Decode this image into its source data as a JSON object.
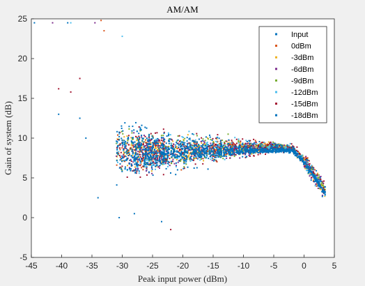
{
  "chart_data": {
    "type": "scatter",
    "title": "AM/AM",
    "xlabel": "Peak input power (dBm)",
    "ylabel": "Gain of system (dB)",
    "xlim": [
      -45,
      5
    ],
    "ylim": [
      -5,
      25
    ],
    "xticks": [
      "-45",
      "-40",
      "-35",
      "-30",
      "-25",
      "-20",
      "-15",
      "-10",
      "-5",
      "0",
      "5"
    ],
    "yticks": [
      "-5",
      "0",
      "5",
      "10",
      "15",
      "20",
      "25"
    ],
    "grid": false,
    "legend_position": "top-right",
    "series": [
      {
        "name": "Input",
        "color": "#0072bd",
        "shift": 0,
        "spread": 1.0,
        "trend": [
          [
            -30,
            8.3
          ],
          [
            -20,
            8.3
          ],
          [
            -10,
            8.4
          ],
          [
            -2,
            8.5
          ],
          [
            0,
            7.0
          ],
          [
            3.5,
            3.0
          ]
        ]
      },
      {
        "name": "0dBm",
        "color": "#d95319",
        "shift": 0,
        "spread": 0.62,
        "trend": [
          [
            -26,
            8.2
          ],
          [
            -15,
            8.6
          ],
          [
            -5,
            8.9
          ],
          [
            -2,
            8.7
          ],
          [
            0,
            7.2
          ],
          [
            3.5,
            3.2
          ]
        ]
      },
      {
        "name": "-3dBm",
        "color": "#edb120",
        "shift": -3,
        "spread": 0.68,
        "trend": [
          [
            -26,
            8.2
          ],
          [
            -15,
            8.6
          ],
          [
            -5,
            8.9
          ],
          [
            -2,
            8.7
          ],
          [
            0,
            7.2
          ],
          [
            3.5,
            3.2
          ]
        ]
      },
      {
        "name": "-6dBm",
        "color": "#7e2f8e",
        "shift": -6,
        "spread": 0.72,
        "trend": [
          [
            -26,
            8.2
          ],
          [
            -15,
            8.6
          ],
          [
            -5,
            8.9
          ],
          [
            -2,
            8.7
          ],
          [
            0,
            7.2
          ],
          [
            3.5,
            3.2
          ]
        ]
      },
      {
        "name": "-9dBm",
        "color": "#77ac30",
        "shift": -9,
        "spread": 0.76,
        "trend": [
          [
            -26,
            8.2
          ],
          [
            -15,
            8.6
          ],
          [
            -5,
            8.9
          ],
          [
            -2,
            8.7
          ],
          [
            0,
            7.2
          ],
          [
            3.5,
            3.2
          ]
        ]
      },
      {
        "name": "-12dBm",
        "color": "#4dbeee",
        "shift": -12,
        "spread": 0.82,
        "trend": [
          [
            -26,
            8.2
          ],
          [
            -15,
            8.6
          ],
          [
            -5,
            8.9
          ],
          [
            -2,
            8.7
          ],
          [
            0,
            7.2
          ],
          [
            3.5,
            3.2
          ]
        ]
      },
      {
        "name": "-15dBm",
        "color": "#a2142f",
        "shift": -15,
        "spread": 0.88,
        "trend": [
          [
            -26,
            8.2
          ],
          [
            -15,
            8.6
          ],
          [
            -5,
            8.9
          ],
          [
            -2,
            8.7
          ],
          [
            0,
            7.2
          ],
          [
            3.5,
            3.2
          ]
        ]
      },
      {
        "name": "-18dBm",
        "color": "#0072bd",
        "shift": -18,
        "spread": 0.95,
        "trend": [
          [
            -26,
            8.2
          ],
          [
            -15,
            8.6
          ],
          [
            -5,
            8.9
          ],
          [
            -2,
            8.7
          ],
          [
            0,
            7.2
          ],
          [
            3.5,
            3.2
          ]
        ]
      }
    ],
    "outliers": [
      {
        "series": "Input",
        "points": [
          [
            -44.5,
            24.5
          ],
          [
            -39,
            24.5
          ],
          [
            -37,
            12.5
          ],
          [
            -36,
            10.0
          ],
          [
            -34,
            2.5
          ],
          [
            -30.5,
            0.0
          ]
        ]
      },
      {
        "series": "0dBm",
        "points": [
          [
            -33.5,
            24.8
          ],
          [
            -33.0,
            23.5
          ]
        ]
      },
      {
        "series": "-6dBm",
        "points": [
          [
            -34.5,
            24.5
          ],
          [
            -41.5,
            24.5
          ]
        ]
      },
      {
        "series": "-12dBm",
        "points": [
          [
            -38.5,
            24.5
          ],
          [
            -30.0,
            22.8
          ]
        ]
      },
      {
        "series": "-15dBm",
        "points": [
          [
            -37.0,
            17.5
          ],
          [
            -38.5,
            15.8
          ],
          [
            -40.5,
            16.2
          ],
          [
            -22.0,
            -1.5
          ]
        ]
      },
      {
        "series": "-18dBm",
        "points": [
          [
            -40.5,
            13.0
          ],
          [
            -28.0,
            0.5
          ],
          [
            -23.5,
            -0.5
          ]
        ]
      }
    ]
  }
}
